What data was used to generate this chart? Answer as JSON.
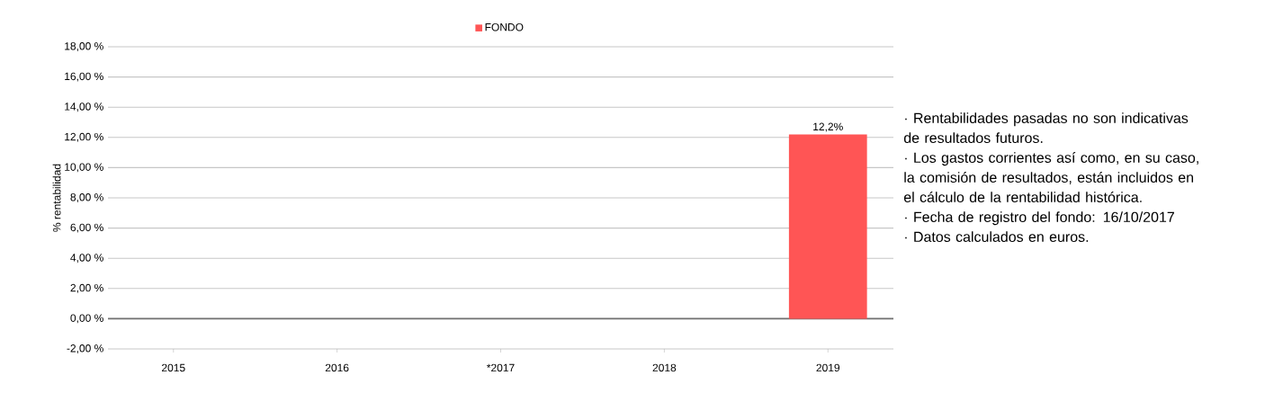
{
  "chart_data": {
    "type": "bar",
    "ylabel": "% rentabilidad",
    "categories": [
      "2015",
      "2016",
      "*2017",
      "2018",
      "2019"
    ],
    "series": [
      {
        "name": "FONDO",
        "color": "#ff5555",
        "values": [
          null,
          null,
          null,
          null,
          12.2
        ],
        "value_labels": [
          null,
          null,
          null,
          null,
          "12,2%"
        ]
      }
    ],
    "ylim": [
      -2,
      18
    ],
    "yticks": [
      {
        "value": -2,
        "label": "-2,00 %"
      },
      {
        "value": 0,
        "label": "0,00 %"
      },
      {
        "value": 2,
        "label": "2,00 %"
      },
      {
        "value": 4,
        "label": "4,00 %"
      },
      {
        "value": 6,
        "label": "6,00 %"
      },
      {
        "value": 8,
        "label": "8,00 %"
      },
      {
        "value": 10,
        "label": "10,00 %"
      },
      {
        "value": 12,
        "label": "12,00 %"
      },
      {
        "value": 14,
        "label": "14,00 %"
      },
      {
        "value": 16,
        "label": "16,00 %"
      },
      {
        "value": 18,
        "label": "18,00 %"
      }
    ],
    "grid": "y",
    "legend": "top",
    "annotations": [
      "· Rentabilidades pasadas no son indicativas de resultados futuros.",
      "· Los gastos corrientes así como, en su caso, la comisión de resultados, están incluidos en el cálculo de la rentabilidad histórica.",
      "· Fecha de registro del fondo: 16/10/2017",
      "· Datos calculados en euros."
    ]
  }
}
